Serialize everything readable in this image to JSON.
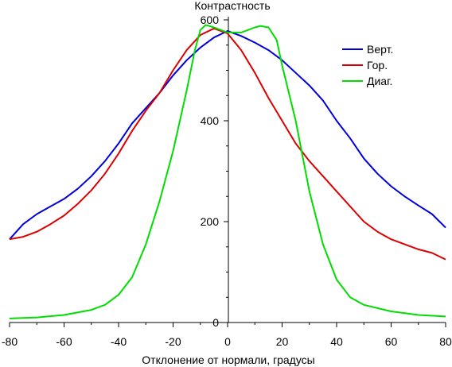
{
  "chart_data": {
    "type": "line",
    "title": "",
    "xlabel": "Отклонение от нормали, градусы",
    "ylabel": "Контрастность",
    "xlim": [
      -80,
      80
    ],
    "ylim": [
      0,
      600
    ],
    "xticks": [
      -80,
      -60,
      -40,
      -20,
      0,
      20,
      40,
      60,
      80
    ],
    "yticks": [
      0,
      200,
      400,
      600
    ],
    "xtick_labels": [
      "-80",
      "-60",
      "-40",
      "-20",
      "0",
      "20",
      "40",
      "60",
      "80"
    ],
    "ytick_labels": [
      "0",
      "200",
      "400",
      "600"
    ],
    "grid": false,
    "legend_position": "top-right",
    "series": [
      {
        "name": "Верт.",
        "color": "#0000dd",
        "x": [
          -80,
          -75,
          -70,
          -65,
          -60,
          -55,
          -50,
          -45,
          -40,
          -35,
          -30,
          -25,
          -20,
          -15,
          -10,
          -5,
          0,
          5,
          10,
          15,
          20,
          25,
          30,
          35,
          40,
          45,
          50,
          55,
          60,
          65,
          70,
          75,
          80
        ],
        "values": [
          165,
          195,
          215,
          230,
          245,
          265,
          290,
          320,
          355,
          395,
          425,
          455,
          490,
          520,
          545,
          565,
          578,
          568,
          555,
          540,
          520,
          495,
          470,
          440,
          400,
          365,
          325,
          295,
          270,
          250,
          232,
          215,
          188
        ]
      },
      {
        "name": "Гор.",
        "color": "#dd0000",
        "x": [
          -80,
          -75,
          -70,
          -65,
          -60,
          -55,
          -50,
          -45,
          -40,
          -35,
          -30,
          -25,
          -20,
          -15,
          -10,
          -5,
          0,
          5,
          10,
          15,
          20,
          25,
          30,
          35,
          40,
          45,
          50,
          55,
          60,
          65,
          70,
          75,
          80
        ],
        "values": [
          165,
          170,
          180,
          195,
          212,
          235,
          262,
          295,
          335,
          380,
          420,
          455,
          500,
          540,
          570,
          583,
          573,
          540,
          495,
          445,
          400,
          355,
          320,
          290,
          260,
          230,
          200,
          180,
          165,
          155,
          145,
          138,
          125
        ]
      },
      {
        "name": "Диаг.",
        "color": "#00dd00",
        "x": [
          -80,
          -70,
          -60,
          -50,
          -45,
          -40,
          -35,
          -30,
          -25,
          -20,
          -15,
          -12,
          -10,
          -8,
          -5,
          0,
          5,
          10,
          12,
          15,
          18,
          20,
          25,
          30,
          35,
          40,
          45,
          50,
          60,
          70,
          80
        ],
        "values": [
          8,
          10,
          15,
          25,
          35,
          55,
          90,
          155,
          240,
          340,
          460,
          540,
          580,
          590,
          585,
          575,
          575,
          585,
          588,
          585,
          560,
          510,
          400,
          260,
          155,
          85,
          50,
          35,
          22,
          15,
          12
        ]
      }
    ]
  }
}
